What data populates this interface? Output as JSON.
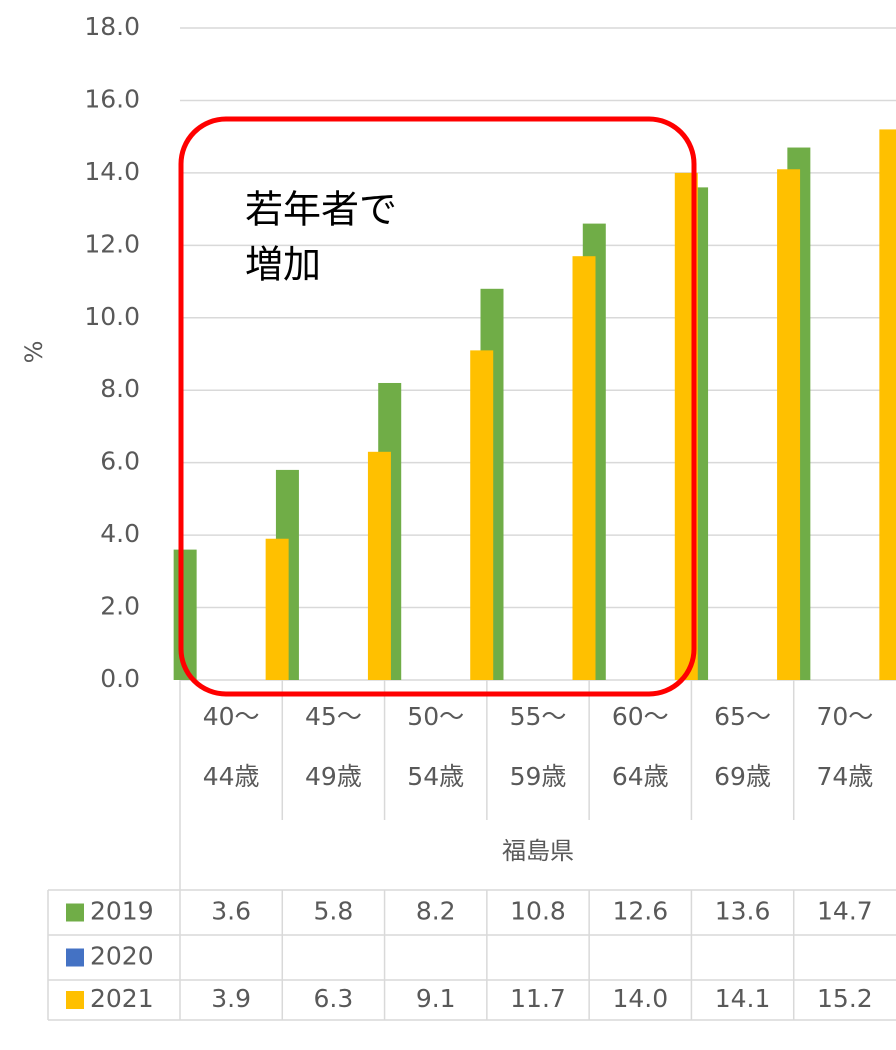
{
  "chart_data": {
    "type": "bar",
    "ylabel": "%",
    "group_label": "福島県",
    "annotation": [
      "若年者で",
      "増加"
    ],
    "categories": [
      [
        "40～",
        "44歳"
      ],
      [
        "45～",
        "49歳"
      ],
      [
        "50～",
        "54歳"
      ],
      [
        "55～",
        "59歳"
      ],
      [
        "60～",
        "64歳"
      ],
      [
        "65～",
        "69歳"
      ],
      [
        "70～",
        "74歳"
      ]
    ],
    "series": [
      {
        "name": "2019",
        "color": "#70ad47",
        "values": [
          3.6,
          5.8,
          8.2,
          10.8,
          12.6,
          13.6,
          14.7
        ],
        "value_labels": [
          "3.6",
          "5.8",
          "8.2",
          "10.8",
          "12.6",
          "13.6",
          "14.7"
        ]
      },
      {
        "name": "2020",
        "color": "#4472c4",
        "values": [
          null,
          null,
          null,
          null,
          null,
          null,
          null
        ]
      },
      {
        "name": "2021",
        "color": "#ffc000",
        "values": [
          3.9,
          6.3,
          9.1,
          11.7,
          14.0,
          14.1,
          15.2
        ],
        "value_labels": [
          "3.9",
          "6.3",
          "9.1",
          "11.7",
          "14.0",
          "14.1",
          "15.2"
        ]
      }
    ],
    "ylim": [
      0,
      18
    ],
    "yticks": [
      {
        "value": 0,
        "label": "0.0"
      },
      {
        "value": 2,
        "label": "2.0"
      },
      {
        "value": 4,
        "label": "4.0"
      },
      {
        "value": 6,
        "label": "6.0"
      },
      {
        "value": 8,
        "label": "8.0"
      },
      {
        "value": 10,
        "label": "10.0"
      },
      {
        "value": 12,
        "label": "12.0"
      },
      {
        "value": 14,
        "label": "14.0"
      },
      {
        "value": 16,
        "label": "16.0"
      },
      {
        "value": 18,
        "label": "18.0"
      }
    ],
    "grid": true
  }
}
